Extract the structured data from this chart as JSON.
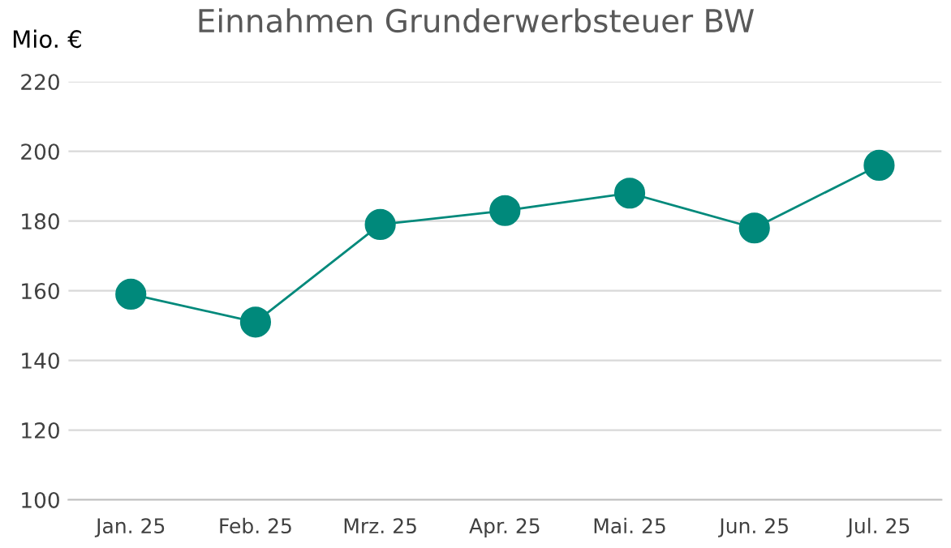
{
  "chart_data": {
    "type": "line",
    "title": "Einnahmen Grunderwerbsteuer BW",
    "ylabel": "Mio. €",
    "categories": [
      "Jan. 25",
      "Feb. 25",
      "Mrz. 25",
      "Apr. 25",
      "Mai. 25",
      "Jun. 25",
      "Jul. 25"
    ],
    "series": [
      {
        "color": "#00897b",
        "values": [
          159,
          151,
          179,
          183,
          188,
          178,
          196
        ]
      }
    ],
    "ylim": [
      100,
      220
    ],
    "yticks": [
      100,
      120,
      140,
      160,
      180,
      200,
      220
    ],
    "grid": "y",
    "marker": "circle",
    "line_style": "solid",
    "legend": false
  }
}
